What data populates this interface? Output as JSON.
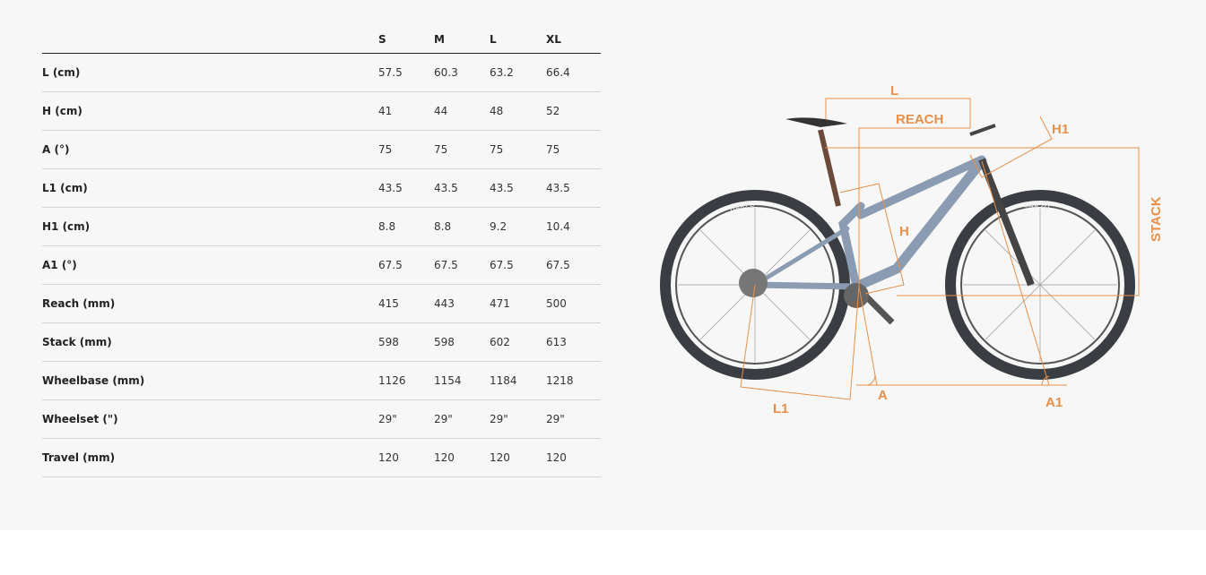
{
  "table": {
    "columns": [
      "S",
      "M",
      "L",
      "XL"
    ],
    "rows": [
      {
        "label": "L (cm)",
        "values": [
          "57.5",
          "60.3",
          "63.2",
          "66.4"
        ]
      },
      {
        "label": "H (cm)",
        "values": [
          "41",
          "44",
          "48",
          "52"
        ]
      },
      {
        "label": "A (°)",
        "values": [
          "75",
          "75",
          "75",
          "75"
        ]
      },
      {
        "label": "L1 (cm)",
        "values": [
          "43.5",
          "43.5",
          "43.5",
          "43.5"
        ]
      },
      {
        "label": "H1 (cm)",
        "values": [
          "8.8",
          "8.8",
          "9.2",
          "10.4"
        ]
      },
      {
        "label": "A1 (°)",
        "values": [
          "67.5",
          "67.5",
          "67.5",
          "67.5"
        ]
      },
      {
        "label": "Reach (mm)",
        "values": [
          "415",
          "443",
          "471",
          "500"
        ]
      },
      {
        "label": "Stack (mm)",
        "values": [
          "598",
          "598",
          "602",
          "613"
        ]
      },
      {
        "label": "Wheelbase (mm)",
        "values": [
          "1126",
          "1154",
          "1184",
          "1218"
        ]
      },
      {
        "label": "Wheelset (\")",
        "values": [
          "29\"",
          "29\"",
          "29\"",
          "29\""
        ]
      },
      {
        "label": "Travel (mm)",
        "values": [
          "120",
          "120",
          "120",
          "120"
        ]
      }
    ]
  },
  "diagram": {
    "labels": {
      "L": "L",
      "reach": "REACH",
      "h1": "H1",
      "stack": "STACK",
      "h": "H",
      "l1": "L1",
      "a": "A",
      "a1": "A1"
    },
    "tire_text": "BARZO",
    "accent": "#e8904a"
  }
}
